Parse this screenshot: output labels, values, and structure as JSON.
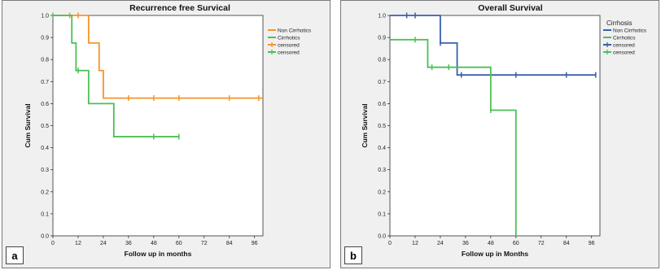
{
  "chart_data": [
    {
      "type": "line",
      "panel": "a",
      "title": "Recurrence free Survical",
      "xlabel": "Follow up in months",
      "ylabel": "Cum Survival",
      "xlim": [
        0,
        100
      ],
      "ylim": [
        0,
        1
      ],
      "xticks": [
        0,
        12,
        24,
        36,
        48,
        60,
        72,
        84,
        96
      ],
      "yticks": [
        0.0,
        0.1,
        0.2,
        0.3,
        0.4,
        0.5,
        0.6,
        0.7,
        0.8,
        0.9,
        1.0
      ],
      "legend_title": "",
      "legend": [
        "Non Cirrhotics",
        "Cirrhotics",
        "censored",
        "censored"
      ],
      "legend_placement": "top-right",
      "series": [
        {
          "name": "Non Cirrhotics",
          "color": "#f7942a",
          "steps": [
            [
              0,
              1.0
            ],
            [
              17,
              0.875
            ],
            [
              22,
              0.75
            ],
            [
              24,
              0.625
            ],
            [
              100,
              0.625
            ]
          ],
          "censored": [
            [
              8,
              1.0
            ],
            [
              12,
              1.0
            ],
            [
              36,
              0.625
            ],
            [
              48,
              0.625
            ],
            [
              60,
              0.625
            ],
            [
              84,
              0.625
            ],
            [
              98,
              0.625
            ]
          ]
        },
        {
          "name": "Cirrhotics",
          "color": "#4dbf55",
          "steps": [
            [
              0,
              1.0
            ],
            [
              9,
              0.875
            ],
            [
              11,
              0.75
            ],
            [
              17,
              0.6
            ],
            [
              29,
              0.45
            ],
            [
              60,
              0.45
            ]
          ],
          "censored": [
            [
              0,
              1.0
            ],
            [
              12,
              0.75
            ],
            [
              48,
              0.45
            ],
            [
              60,
              0.45
            ]
          ]
        }
      ]
    },
    {
      "type": "line",
      "panel": "b",
      "title": "Overall Survival",
      "xlabel": "Follow up in Months",
      "ylabel": "Cum Survival",
      "xlim": [
        0,
        100
      ],
      "ylim": [
        0,
        1
      ],
      "xticks": [
        0,
        12,
        24,
        36,
        48,
        60,
        72,
        84,
        96
      ],
      "yticks": [
        0.0,
        0.1,
        0.2,
        0.3,
        0.4,
        0.5,
        0.6,
        0.7,
        0.8,
        0.9,
        1.0
      ],
      "legend_title": "Cirrhosis",
      "legend": [
        "Non Cirrhotics",
        "Cirrhotics",
        "censored",
        "censored"
      ],
      "legend_placement": "top-right",
      "series": [
        {
          "name": "Non Cirrhotics",
          "color": "#3a5fad",
          "steps": [
            [
              0,
              1.0
            ],
            [
              24,
              0.875
            ],
            [
              32,
              0.73
            ],
            [
              98,
              0.73
            ]
          ],
          "censored": [
            [
              8,
              1.0
            ],
            [
              12,
              1.0
            ],
            [
              24,
              0.875
            ],
            [
              34,
              0.73
            ],
            [
              60,
              0.73
            ],
            [
              84,
              0.73
            ],
            [
              98,
              0.73
            ]
          ]
        },
        {
          "name": "Cirrhotics",
          "color": "#4dbf55",
          "steps": [
            [
              0,
              0.89
            ],
            [
              18,
              0.765
            ],
            [
              48,
              0.57
            ],
            [
              60,
              0.0
            ]
          ],
          "censored": [
            [
              12,
              0.89
            ],
            [
              20,
              0.765
            ],
            [
              28,
              0.765
            ],
            [
              48,
              0.57
            ]
          ]
        }
      ]
    }
  ]
}
